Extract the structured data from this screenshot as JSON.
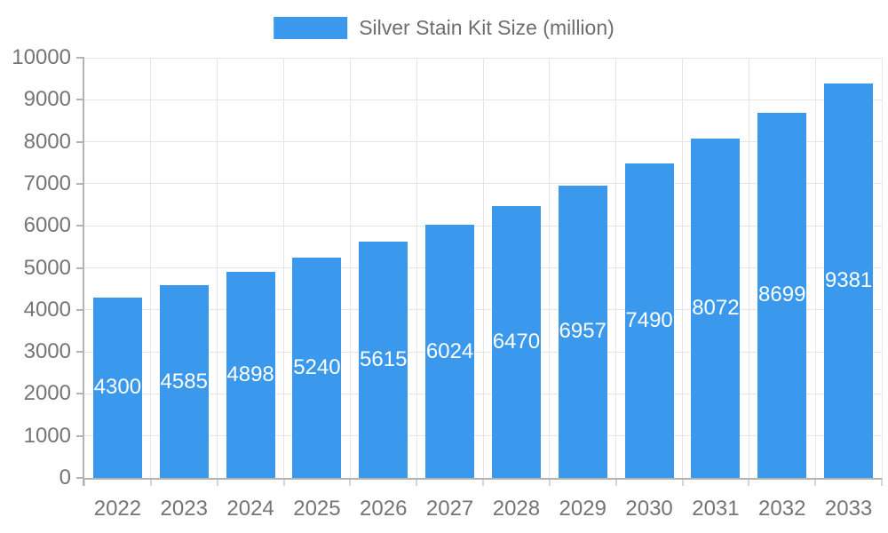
{
  "chart_data": {
    "type": "bar",
    "title": "Silver Stain Kit Size (million)",
    "legend": [
      "Silver Stain Kit Size (million)"
    ],
    "legend_position": "top-center",
    "categories": [
      "2022",
      "2023",
      "2024",
      "2025",
      "2026",
      "2027",
      "2028",
      "2029",
      "2030",
      "2031",
      "2032",
      "2033"
    ],
    "series": [
      {
        "name": "Silver Stain Kit Size (million)",
        "values": [
          4300,
          4585,
          4898,
          5240,
          5615,
          6024,
          6470,
          6957,
          7490,
          8072,
          8699,
          9381
        ]
      }
    ],
    "xlabel": "",
    "ylabel": "",
    "ylim": [
      0,
      10000
    ],
    "y_tick_step": 1000,
    "y_tick_labels": [
      "0",
      "1000",
      "2000",
      "3000",
      "4000",
      "5000",
      "6000",
      "7000",
      "8000",
      "9000",
      "10000"
    ],
    "grid": true,
    "value_labels": "inside-center-white"
  },
  "style": {
    "bar_color": "#3a99ec",
    "grid_color": "#e6e6e6",
    "axis_color": "#b3b3b3",
    "x_tick_color": "#d6d6d6",
    "axis_label_color": "#757575",
    "legend_text_color": "#6e6e6e",
    "value_label_color": "#ffffff",
    "background": "#ffffff"
  }
}
